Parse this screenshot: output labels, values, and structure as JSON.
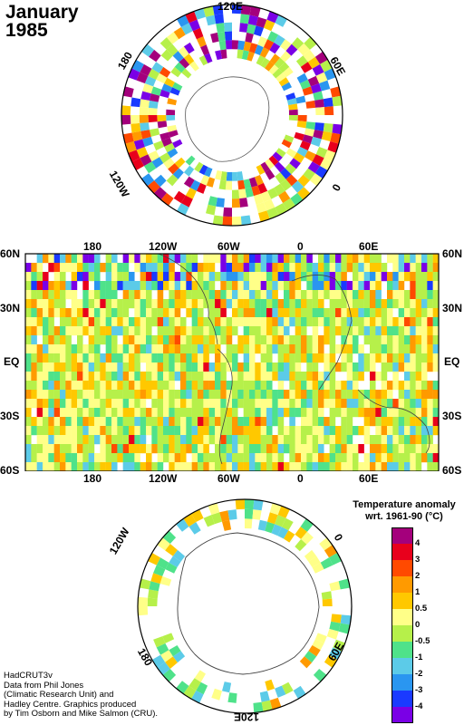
{
  "title": {
    "month": "January",
    "year": "1985"
  },
  "north_map": {
    "labels": {
      "top": "120E",
      "upper_left": "180",
      "upper_right": "60E",
      "lower_left": "120W",
      "right": "0"
    }
  },
  "world_map": {
    "top_labels": [
      "180",
      "120W",
      "60W",
      "0",
      "60E"
    ],
    "bottom_labels": [
      "180",
      "120W",
      "60W",
      "0",
      "60E"
    ],
    "lat_labels": [
      "60N",
      "30N",
      "EQ",
      "30S",
      "60S"
    ]
  },
  "south_map": {
    "labels": {
      "upper_left": "120W",
      "right_top": "0",
      "lower_left": "180",
      "lower_right": "60E",
      "bottom": "120E"
    }
  },
  "legend": {
    "title_line1": "Temperature anomaly",
    "title_line2": "wrt. 1961-90  (°C)",
    "colors": [
      "#a4007c",
      "#e8001c",
      "#ff4a00",
      "#ff9a00",
      "#ffc800",
      "#ffff88",
      "#b6f04a",
      "#4fe28a",
      "#5ccbe8",
      "#2a96f0",
      "#1a3aff",
      "#7a00e6"
    ],
    "labels": [
      "4",
      "3",
      "2",
      "1",
      "0.5",
      "0",
      "-0.5",
      "-1",
      "-2",
      "-3",
      "-4"
    ]
  },
  "credits": [
    "HadCRUT3v",
    "Data from Phil Jones",
    "(Climatic Research Unit) and",
    "Hadley Centre.  Graphics produced",
    "by Tim Osborn and Mike Salmon (CRU)."
  ]
}
